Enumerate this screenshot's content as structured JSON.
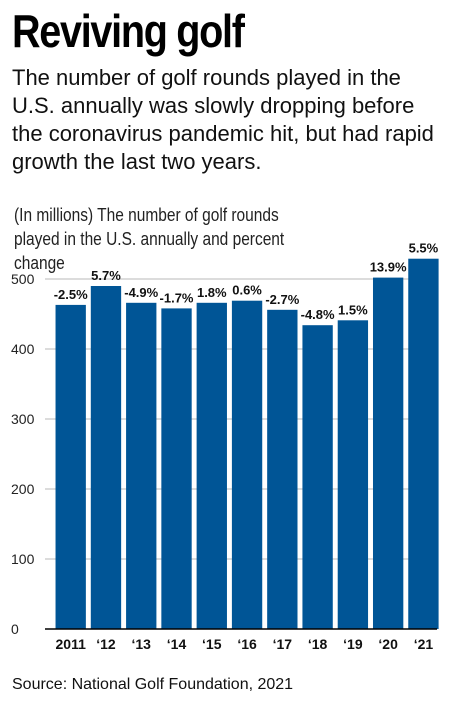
{
  "header": {
    "title": "Reviving golf",
    "subtitle": "The number of golf rounds played in the U.S. annually was slowly dropping before the coronavirus pandemic hit, but had rapid growth the last two years."
  },
  "chart_data": {
    "type": "bar",
    "description": "(In millions) The number of golf rounds played in the U.S. annually and percent change",
    "categories": [
      "2011",
      "‘12",
      "‘13",
      "‘14",
      "‘15",
      "‘16",
      "‘17",
      "‘18",
      "‘19",
      "‘20",
      "‘21"
    ],
    "values": [
      463,
      490,
      466,
      458,
      466,
      469,
      456,
      434,
      441,
      502,
      529
    ],
    "data_labels": [
      "-2.5%",
      "5.7%",
      "-4.9%",
      "-1.7%",
      "1.8%",
      "0.6%",
      "-2.7%",
      "-4.8%",
      "1.5%",
      "13.9%",
      "5.5%"
    ],
    "yticks": [
      0,
      100,
      200,
      300,
      400,
      500
    ],
    "ylim": [
      0,
      500
    ],
    "grid": true,
    "bar_color": "#005596"
  },
  "footer": {
    "source": "Source: National Golf Foundation, 2021"
  }
}
